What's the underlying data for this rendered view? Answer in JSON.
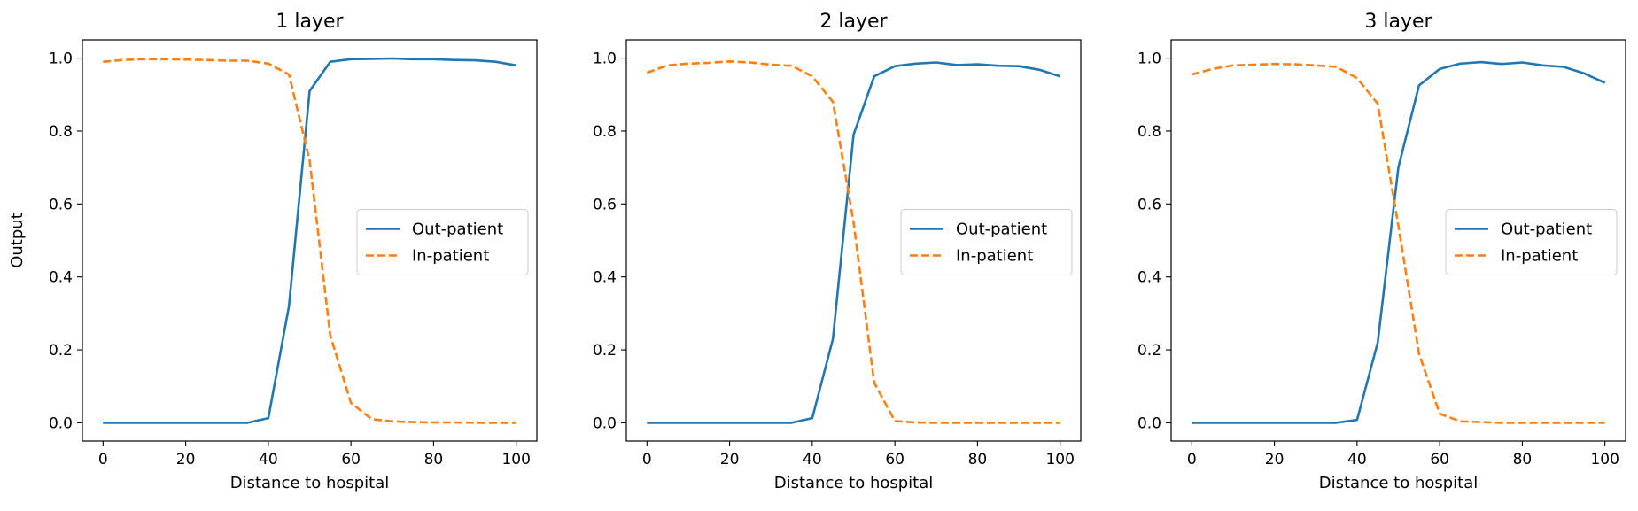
{
  "chart_data": [
    {
      "type": "line",
      "title": "1 layer",
      "xlabel": "Distance to hospital",
      "ylabel": "Output",
      "xlim": [
        -5,
        105
      ],
      "ylim": [
        -0.05,
        1.05
      ],
      "xticks": [
        0,
        20,
        40,
        60,
        80,
        100
      ],
      "yticks": [
        0.0,
        0.2,
        0.4,
        0.6,
        0.8,
        1.0
      ],
      "grid": false,
      "legend_position": "center-right",
      "x": [
        0,
        5,
        10,
        15,
        20,
        25,
        30,
        35,
        40,
        45,
        50,
        55,
        60,
        65,
        70,
        75,
        80,
        85,
        90,
        95,
        100
      ],
      "series": [
        {
          "name": "Out-patient",
          "color": "#1f77b4",
          "style": "solid",
          "values": [
            0.0,
            0.0,
            0.0,
            0.0,
            0.0,
            0.0,
            0.0,
            0.0,
            0.013,
            0.32,
            0.91,
            0.99,
            0.997,
            0.998,
            0.999,
            0.997,
            0.997,
            0.995,
            0.994,
            0.99,
            0.98
          ]
        },
        {
          "name": "In-patient",
          "color": "#ff7f0e",
          "style": "dashed",
          "values": [
            0.99,
            0.995,
            0.997,
            0.997,
            0.996,
            0.995,
            0.993,
            0.993,
            0.985,
            0.955,
            0.72,
            0.24,
            0.055,
            0.01,
            0.004,
            0.002,
            0.001,
            0.001,
            0.0,
            0.0,
            0.0
          ]
        }
      ]
    },
    {
      "type": "line",
      "title": "2 layer",
      "xlabel": "Distance to hospital",
      "ylabel": "",
      "xlim": [
        -5,
        105
      ],
      "ylim": [
        -0.05,
        1.05
      ],
      "xticks": [
        0,
        20,
        40,
        60,
        80,
        100
      ],
      "yticks": [
        0.0,
        0.2,
        0.4,
        0.6,
        0.8,
        1.0
      ],
      "grid": false,
      "legend_position": "center-right",
      "x": [
        0,
        5,
        10,
        15,
        20,
        25,
        30,
        35,
        40,
        45,
        50,
        55,
        60,
        65,
        70,
        75,
        80,
        85,
        90,
        95,
        100
      ],
      "series": [
        {
          "name": "Out-patient",
          "color": "#1f77b4",
          "style": "solid",
          "values": [
            0.0,
            0.0,
            0.0,
            0.0,
            0.0,
            0.0,
            0.0,
            0.0,
            0.013,
            0.23,
            0.79,
            0.95,
            0.978,
            0.985,
            0.988,
            0.981,
            0.983,
            0.979,
            0.978,
            0.968,
            0.95
          ]
        },
        {
          "name": "In-patient",
          "color": "#ff7f0e",
          "style": "dashed",
          "values": [
            0.96,
            0.98,
            0.985,
            0.987,
            0.991,
            0.988,
            0.982,
            0.979,
            0.95,
            0.88,
            0.55,
            0.11,
            0.005,
            0.001,
            0.0,
            0.0,
            0.0,
            0.0,
            0.0,
            0.0,
            0.0
          ]
        }
      ]
    },
    {
      "type": "line",
      "title": "3 layer",
      "xlabel": "Distance to hospital",
      "ylabel": "",
      "xlim": [
        -5,
        105
      ],
      "ylim": [
        -0.05,
        1.05
      ],
      "xticks": [
        0,
        20,
        40,
        60,
        80,
        100
      ],
      "yticks": [
        0.0,
        0.2,
        0.4,
        0.6,
        0.8,
        1.0
      ],
      "grid": false,
      "legend_position": "center-right",
      "x": [
        0,
        5,
        10,
        15,
        20,
        25,
        30,
        35,
        40,
        45,
        50,
        55,
        60,
        65,
        70,
        75,
        80,
        85,
        90,
        95,
        100
      ],
      "series": [
        {
          "name": "Out-patient",
          "color": "#1f77b4",
          "style": "solid",
          "values": [
            0.0,
            0.0,
            0.0,
            0.0,
            0.0,
            0.0,
            0.0,
            0.0,
            0.008,
            0.22,
            0.7,
            0.925,
            0.97,
            0.985,
            0.989,
            0.984,
            0.988,
            0.98,
            0.976,
            0.958,
            0.932
          ]
        },
        {
          "name": "In-patient",
          "color": "#ff7f0e",
          "style": "dashed",
          "values": [
            0.955,
            0.97,
            0.98,
            0.982,
            0.984,
            0.983,
            0.98,
            0.976,
            0.945,
            0.875,
            0.54,
            0.19,
            0.025,
            0.004,
            0.002,
            0.0,
            0.0,
            0.0,
            0.0,
            0.0,
            0.0
          ]
        }
      ]
    }
  ]
}
